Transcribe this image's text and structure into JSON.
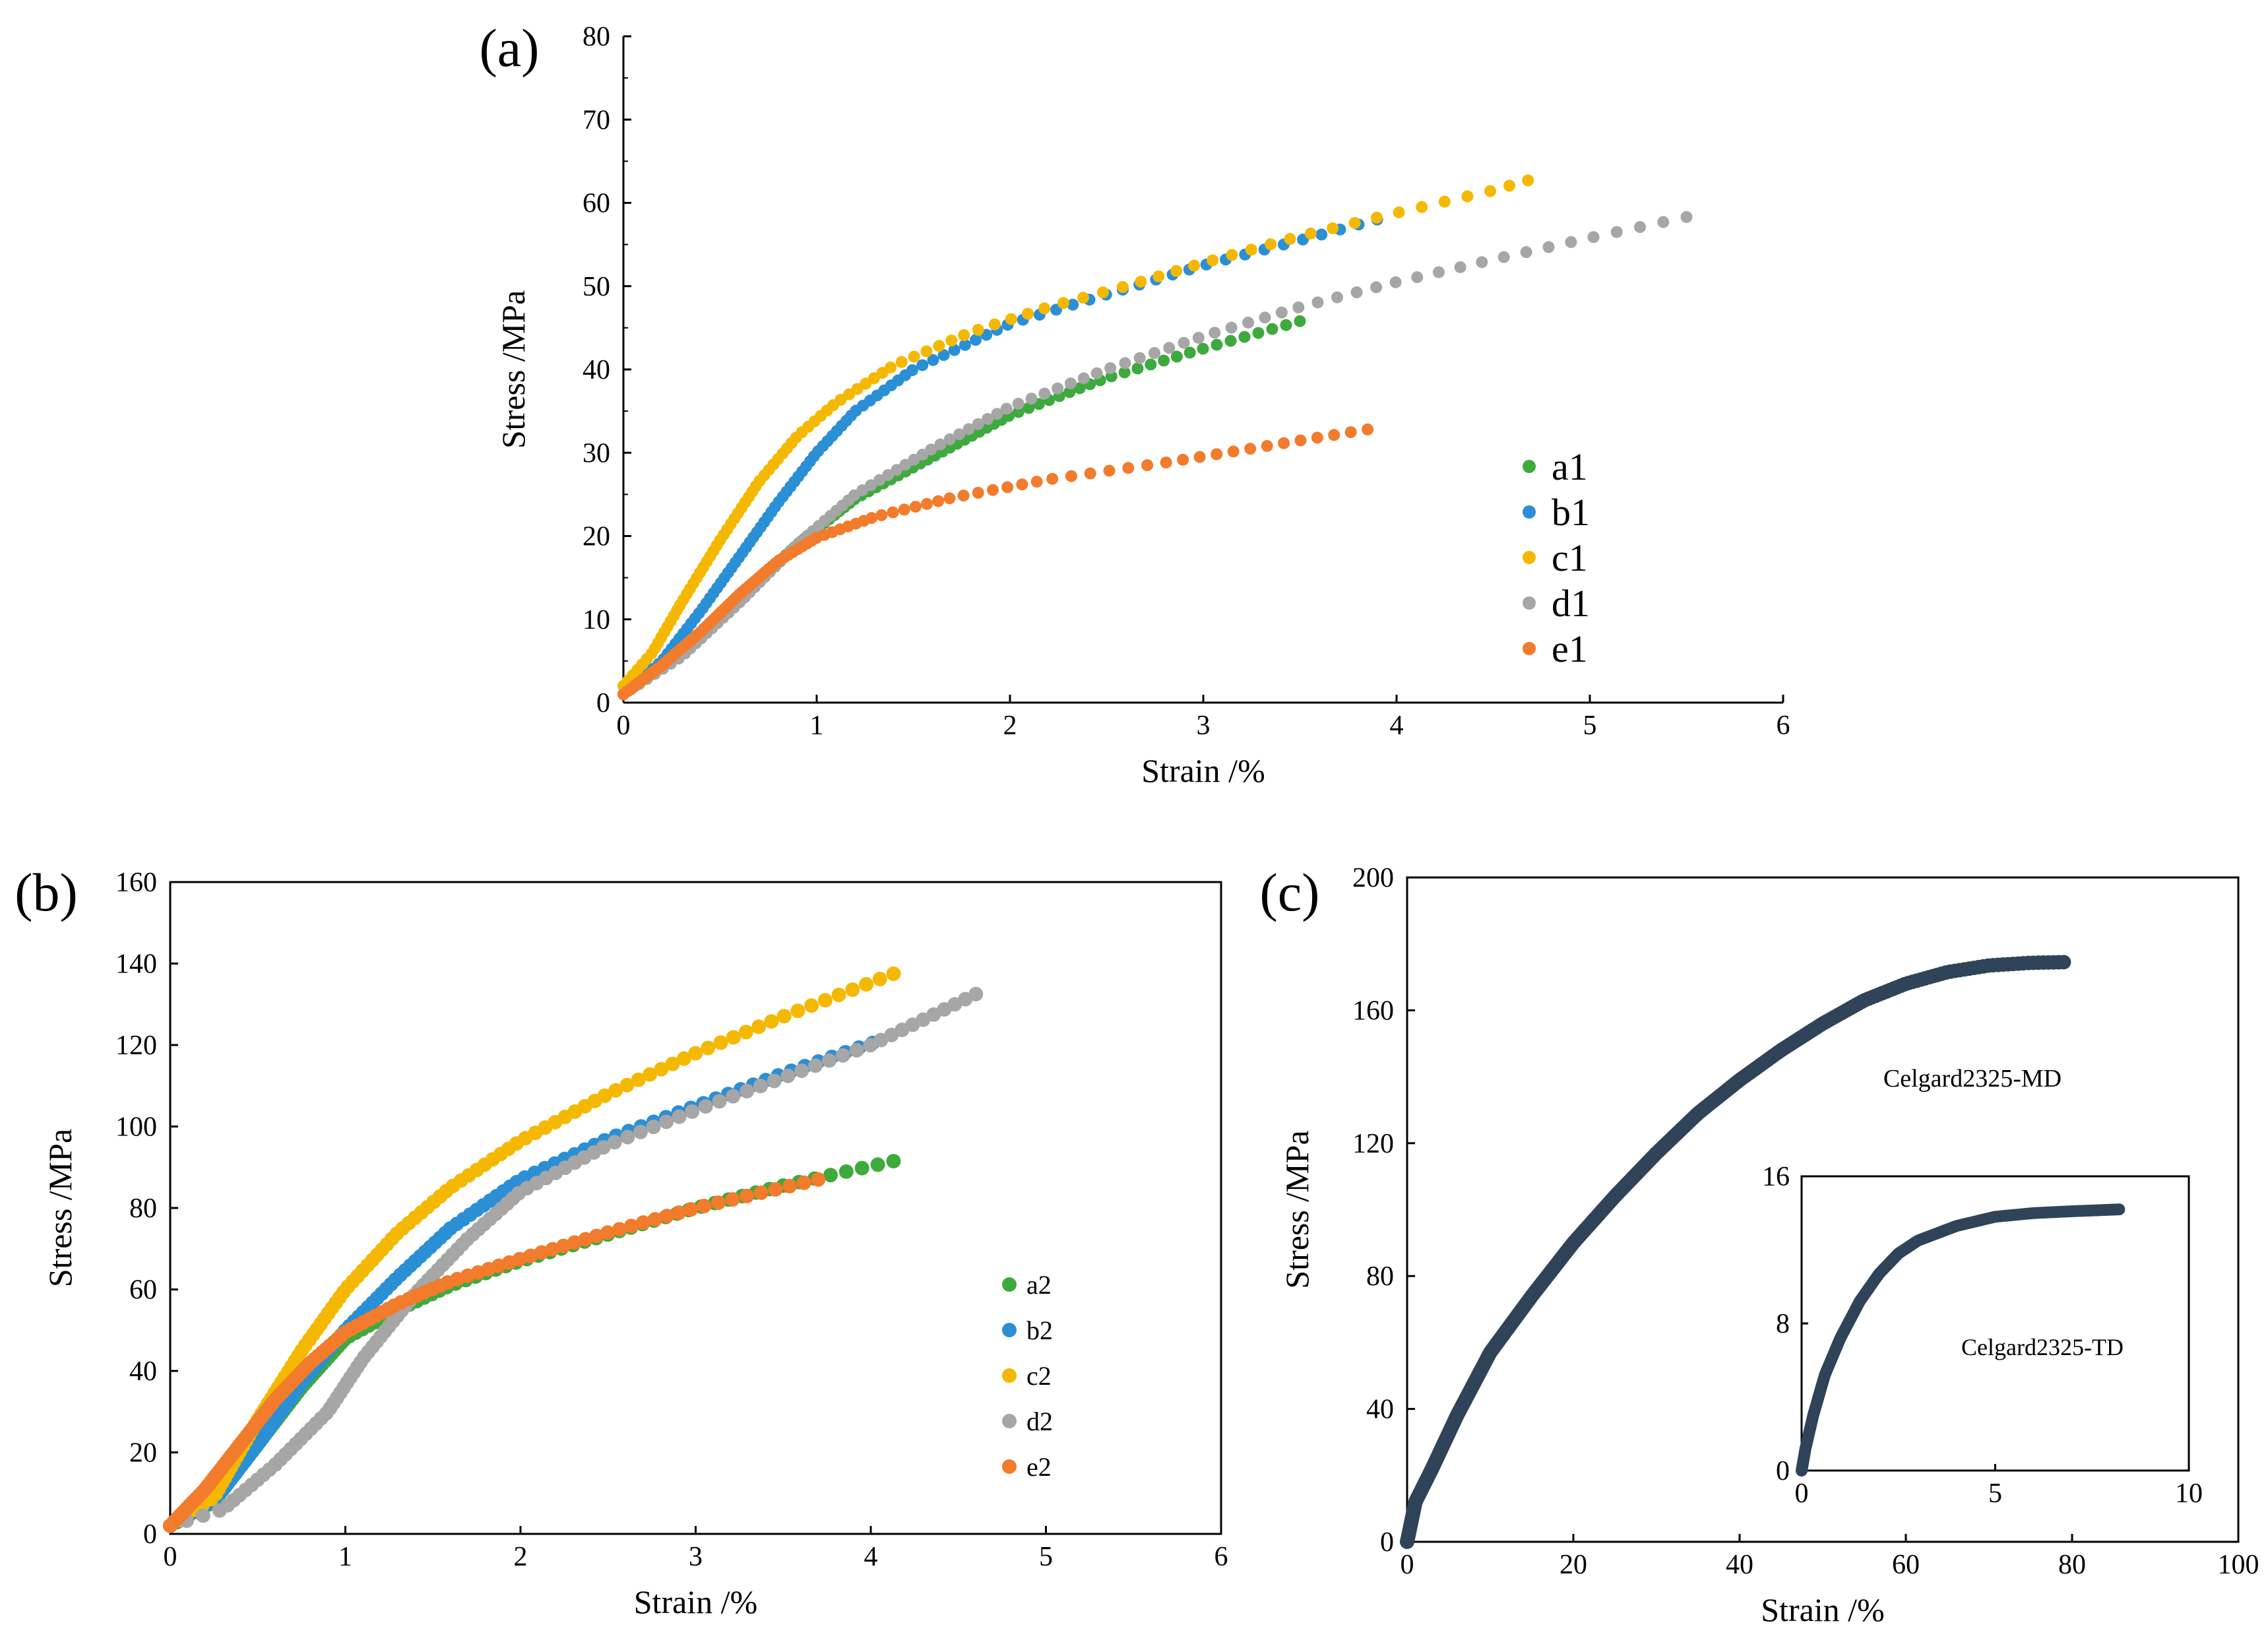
{
  "chart_data": [
    {
      "panel": "(a)",
      "type": "scatter",
      "title": "",
      "xlabel": "Strain /%",
      "ylabel": "Stress /MPa",
      "xlim": [
        0,
        6
      ],
      "ylim": [
        0,
        80
      ],
      "xticks": [
        "0",
        "1",
        "2",
        "3",
        "4",
        "5",
        "6"
      ],
      "yticks": [
        "0",
        "10",
        "20",
        "30",
        "40",
        "50",
        "60",
        "70",
        "80"
      ],
      "legend_position": "bottom-right",
      "series": [
        {
          "name": "a1",
          "color": "#3daa3d",
          "points": [
            [
              0,
              1
            ],
            [
              0.3,
              6
            ],
            [
              0.6,
              12.5
            ],
            [
              0.9,
              19
            ],
            [
              1.2,
              24.5
            ],
            [
              1.6,
              29.5
            ],
            [
              2,
              34.5
            ],
            [
              2.5,
              39
            ],
            [
              3,
              42.5
            ],
            [
              3.5,
              45.8
            ]
          ]
        },
        {
          "name": "b1",
          "color": "#2b8fd6",
          "points": [
            [
              0,
              1
            ],
            [
              0.2,
              5
            ],
            [
              0.4,
              11
            ],
            [
              0.6,
              17.5
            ],
            [
              0.8,
              24
            ],
            [
              1,
              30
            ],
            [
              1.2,
              35
            ],
            [
              1.5,
              40
            ],
            [
              2,
              45.5
            ],
            [
              2.5,
              49
            ],
            [
              3,
              52.5
            ],
            [
              3.5,
              55.5
            ],
            [
              3.9,
              58
            ]
          ]
        },
        {
          "name": "c1",
          "color": "#f5b800",
          "points": [
            [
              0,
              2
            ],
            [
              0.15,
              6
            ],
            [
              0.3,
              12
            ],
            [
              0.5,
              19.5
            ],
            [
              0.7,
              26.5
            ],
            [
              0.9,
              32
            ],
            [
              1.1,
              36
            ],
            [
              1.4,
              40.5
            ],
            [
              1.8,
              44.5
            ],
            [
              2.2,
              47.5
            ],
            [
              2.6,
              50
            ],
            [
              3,
              52.8
            ],
            [
              3.5,
              56
            ],
            [
              4,
              58.8
            ],
            [
              4.5,
              61.5
            ],
            [
              4.68,
              62.7
            ]
          ]
        },
        {
          "name": "d1",
          "color": "#a6a6a6",
          "points": [
            [
              0,
              1
            ],
            [
              0.3,
              5.5
            ],
            [
              0.6,
              12
            ],
            [
              0.9,
              19
            ],
            [
              1.2,
              25
            ],
            [
              1.6,
              30.5
            ],
            [
              2,
              35.5
            ],
            [
              2.5,
              40
            ],
            [
              3,
              44
            ],
            [
              3.5,
              47.5
            ],
            [
              4,
              50.5
            ],
            [
              4.5,
              53.2
            ],
            [
              5,
              55.8
            ],
            [
              5.5,
              58.3
            ]
          ]
        },
        {
          "name": "e1",
          "color": "#f27b2c",
          "points": [
            [
              0,
              1
            ],
            [
              0.2,
              4.5
            ],
            [
              0.4,
              8.5
            ],
            [
              0.6,
              13
            ],
            [
              0.8,
              17
            ],
            [
              1,
              19.8
            ],
            [
              1.3,
              22.3
            ],
            [
              1.7,
              24.6
            ],
            [
              2.2,
              26.8
            ],
            [
              2.8,
              28.8
            ],
            [
              3.3,
              30.7
            ],
            [
              3.85,
              32.8
            ]
          ]
        }
      ]
    },
    {
      "panel": "(b)",
      "type": "scatter",
      "title": "",
      "xlabel": "Strain /%",
      "ylabel": "Stress /MPa",
      "xlim": [
        0,
        6
      ],
      "ylim": [
        0,
        160
      ],
      "xticks": [
        "0",
        "1",
        "2",
        "3",
        "4",
        "5",
        "6"
      ],
      "yticks": [
        "0",
        "20",
        "40",
        "60",
        "80",
        "100",
        "120",
        "140",
        "160"
      ],
      "legend_position": "bottom-right",
      "series": [
        {
          "name": "a2",
          "color": "#3daa3d",
          "points": [
            [
              0,
              2
            ],
            [
              0.25,
              8
            ],
            [
              0.5,
              22
            ],
            [
              0.75,
              36
            ],
            [
              1,
              48
            ],
            [
              1.3,
              55
            ],
            [
              1.6,
              61
            ],
            [
              2,
              67
            ],
            [
              2.5,
              73.5
            ],
            [
              3,
              80
            ],
            [
              3.5,
              85.5
            ],
            [
              4.13,
              91.5
            ]
          ]
        },
        {
          "name": "b2",
          "color": "#2b8fd6",
          "points": [
            [
              0,
              2
            ],
            [
              0.25,
              8
            ],
            [
              0.5,
              22
            ],
            [
              0.75,
              37
            ],
            [
              1,
              50
            ],
            [
              1.3,
              63
            ],
            [
              1.6,
              75
            ],
            [
              2,
              87
            ],
            [
              2.5,
              97
            ],
            [
              3,
              105
            ],
            [
              3.5,
              113
            ],
            [
              4.01,
              120.5
            ]
          ]
        },
        {
          "name": "c2",
          "color": "#f5b800",
          "points": [
            [
              0,
              2
            ],
            [
              0.25,
              9
            ],
            [
              0.5,
              28
            ],
            [
              0.75,
              45
            ],
            [
              1,
              60
            ],
            [
              1.3,
              74
            ],
            [
              1.6,
              85
            ],
            [
              2,
              96.5
            ],
            [
              2.5,
              108
            ],
            [
              3,
              118
            ],
            [
              3.5,
              127
            ],
            [
              4.13,
              137.5
            ]
          ]
        },
        {
          "name": "d2",
          "color": "#a6a6a6",
          "points": [
            [
              0,
              2
            ],
            [
              0.3,
              6
            ],
            [
              0.6,
              17
            ],
            [
              0.9,
              30
            ],
            [
              1.1,
              43
            ],
            [
              1.4,
              59
            ],
            [
              1.7,
              72.5
            ],
            [
              2,
              84
            ],
            [
              2.5,
              95.5
            ],
            [
              3,
              104
            ],
            [
              3.5,
              112
            ],
            [
              4,
              120
            ],
            [
              4.6,
              132.5
            ]
          ]
        },
        {
          "name": "e2",
          "color": "#f27b2c",
          "points": [
            [
              0,
              2
            ],
            [
              0.2,
              11
            ],
            [
              0.4,
              22
            ],
            [
              0.6,
              33
            ],
            [
              0.8,
              42
            ],
            [
              1,
              49.5
            ],
            [
              1.3,
              56.5
            ],
            [
              1.6,
              62
            ],
            [
              2,
              67.5
            ],
            [
              2.5,
              74
            ],
            [
              3,
              80
            ],
            [
              3.5,
              85
            ],
            [
              3.7,
              87
            ]
          ]
        }
      ]
    },
    {
      "panel": "(c)",
      "type": "scatter",
      "title": "",
      "xlabel": "Strain /%",
      "ylabel": "Stress /MPa",
      "xlim": [
        0,
        100
      ],
      "ylim": [
        0,
        200
      ],
      "xticks": [
        "0",
        "20",
        "40",
        "60",
        "80",
        "100"
      ],
      "yticks": [
        "0",
        "40",
        "80",
        "120",
        "160",
        "200"
      ],
      "annotation": "Celgard2325-MD",
      "series": [
        {
          "name": "Celgard2325-MD",
          "color": "#2f4359",
          "points": [
            [
              0,
              0
            ],
            [
              1,
              12
            ],
            [
              3,
              22
            ],
            [
              6,
              38
            ],
            [
              10,
              57
            ],
            [
              15,
              74
            ],
            [
              20,
              90
            ],
            [
              25,
              104
            ],
            [
              30,
              117
            ],
            [
              35,
              129
            ],
            [
              40,
              139
            ],
            [
              45,
              148
            ],
            [
              50,
              156
            ],
            [
              55,
              163
            ],
            [
              60,
              168
            ],
            [
              65,
              171.5
            ],
            [
              70,
              173.5
            ],
            [
              75,
              174.3
            ],
            [
              79,
              174.5
            ]
          ]
        }
      ],
      "inset": {
        "type": "scatter",
        "xlim": [
          0,
          10
        ],
        "ylim": [
          0,
          16
        ],
        "xticks": [
          "0",
          "5",
          "10"
        ],
        "yticks": [
          "0",
          "8",
          "16"
        ],
        "annotation": "Celgard2325-TD",
        "series": [
          {
            "name": "Celgard2325-TD",
            "color": "#2f4359",
            "points": [
              [
                0,
                0
              ],
              [
                0.1,
                1.2
              ],
              [
                0.3,
                3
              ],
              [
                0.6,
                5.2
              ],
              [
                1,
                7.2
              ],
              [
                1.5,
                9.2
              ],
              [
                2,
                10.7
              ],
              [
                2.5,
                11.8
              ],
              [
                3,
                12.5
              ],
              [
                4,
                13.3
              ],
              [
                5,
                13.8
              ],
              [
                6,
                14
              ],
              [
                7,
                14.1
              ],
              [
                8.2,
                14.2
              ]
            ]
          }
        ]
      }
    }
  ]
}
